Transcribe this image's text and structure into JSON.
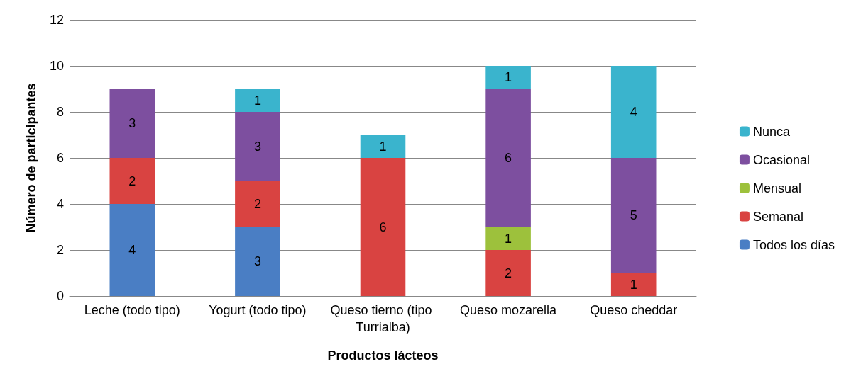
{
  "chart_data": {
    "type": "bar",
    "stacked": true,
    "xlabel": "Productos lácteos",
    "ylabel": "Número de participantes",
    "categories": [
      "Leche (todo tipo)",
      "Yogurt (todo tipo)",
      "Queso tierno (tipo Turrialba)",
      "Queso mozarella",
      "Queso cheddar"
    ],
    "series": [
      {
        "name": "Todos los días",
        "color": "#4a7ec4",
        "values": [
          4,
          3,
          null,
          null,
          null
        ]
      },
      {
        "name": "Semanal",
        "color": "#d94341",
        "values": [
          2,
          2,
          6,
          2,
          1
        ]
      },
      {
        "name": "Mensual",
        "color": "#9dc13c",
        "values": [
          null,
          null,
          null,
          1,
          null
        ]
      },
      {
        "name": "Ocasional",
        "color": "#7d4f9f",
        "values": [
          3,
          3,
          null,
          6,
          5
        ]
      },
      {
        "name": "Nunca",
        "color": "#3ab4cd",
        "values": [
          null,
          1,
          1,
          1,
          4
        ]
      }
    ],
    "ylim": [
      0,
      12
    ],
    "yticks": [
      0,
      2,
      4,
      6,
      8,
      10,
      12
    ],
    "grid": "y",
    "legend": "right",
    "data_labels": true
  }
}
